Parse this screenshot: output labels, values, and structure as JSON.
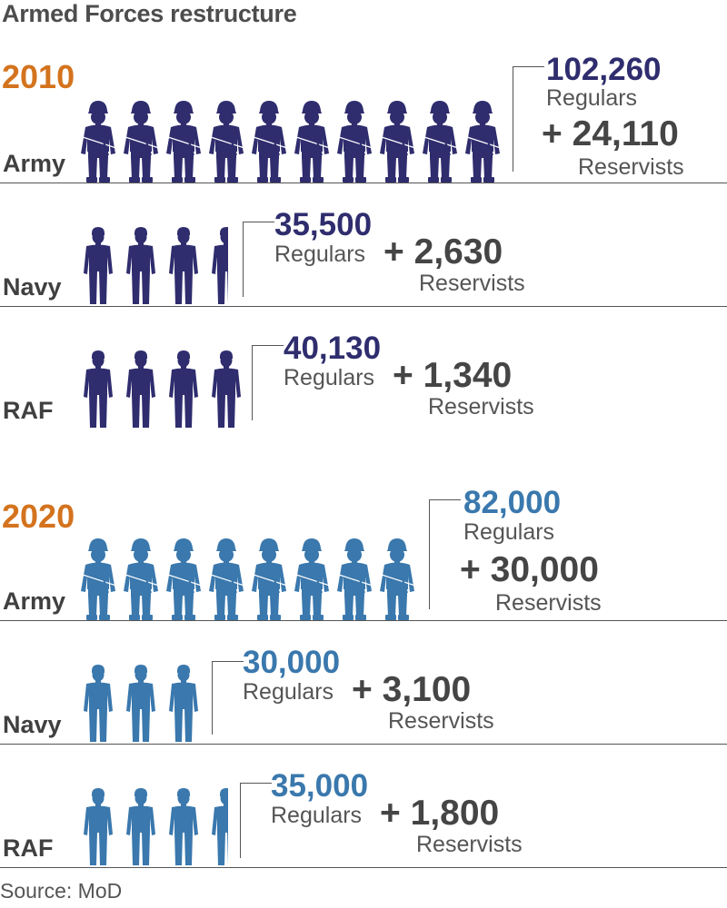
{
  "chart_data": {
    "type": "table",
    "title": "Armed Forces restructure",
    "source": "Source: MoD",
    "colors": {
      "year": "#d4731e",
      "2010": "#2f2d6e",
      "2020": "#3a78ad"
    },
    "icons": {
      "army": "armed-soldier-icon",
      "navy_raf": "standing-person-icon"
    },
    "labels": {
      "regulars": "Regulars",
      "reservists": "Reservists",
      "plus": "+"
    },
    "years": [
      {
        "year": "2010",
        "branches": [
          {
            "name": "Army",
            "regulars": "102,260",
            "reservists": "24,110",
            "figure_count": 10
          },
          {
            "name": "Navy",
            "regulars": "35,500",
            "reservists": "2,630",
            "figure_count": 3.5
          },
          {
            "name": "RAF",
            "regulars": "40,130",
            "reservists": "1,340",
            "figure_count": 4
          }
        ]
      },
      {
        "year": "2020",
        "branches": [
          {
            "name": "Army",
            "regulars": "82,000",
            "reservists": "30,000",
            "figure_count": 8
          },
          {
            "name": "Navy",
            "regulars": "30,000",
            "reservists": "3,100",
            "figure_count": 3
          },
          {
            "name": "RAF",
            "regulars": "35,000",
            "reservists": "1,800",
            "figure_count": 3.5
          }
        ]
      }
    ]
  }
}
